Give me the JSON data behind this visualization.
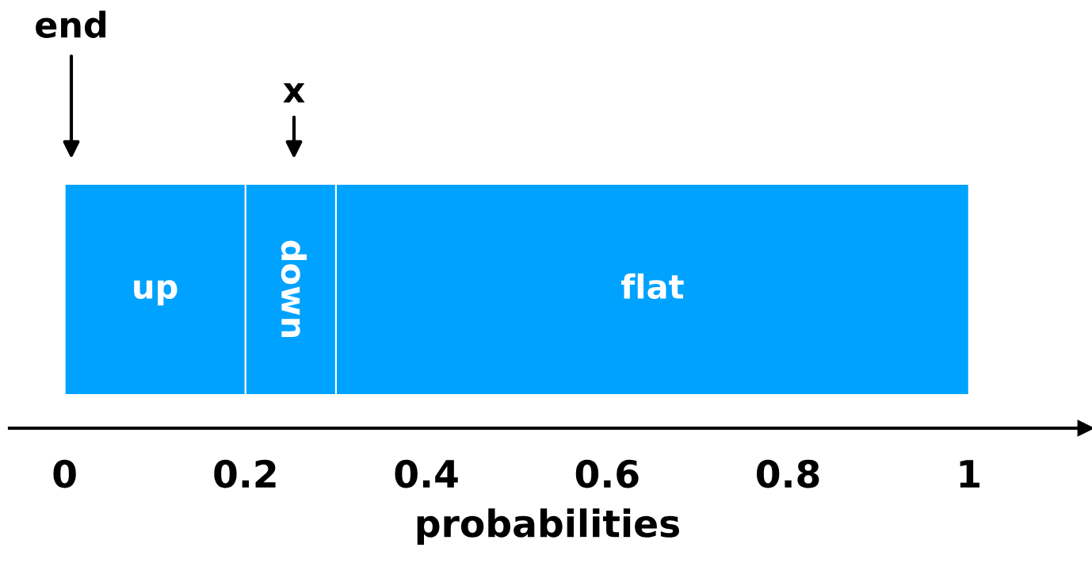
{
  "chart_data": {
    "type": "bar",
    "orientation": "horizontal",
    "stacked": true,
    "categories": [
      null
    ],
    "series": [
      {
        "name": "up",
        "color": "#00a2ff",
        "values": [
          0.2
        ]
      },
      {
        "name": "down",
        "color": "#00a2ff",
        "values": [
          0.1
        ]
      },
      {
        "name": "flat",
        "color": "#00a2ff",
        "values": [
          0.7
        ]
      }
    ],
    "xlabel": "probabilities",
    "xlim": [
      -0.061,
      1.129
    ],
    "xticks": [
      0,
      0.2,
      0.4,
      0.6,
      0.8,
      1
    ],
    "annotations": [
      "end",
      "x"
    ],
    "grid": false,
    "legend": false,
    "tick_labels": "x"
  }
}
